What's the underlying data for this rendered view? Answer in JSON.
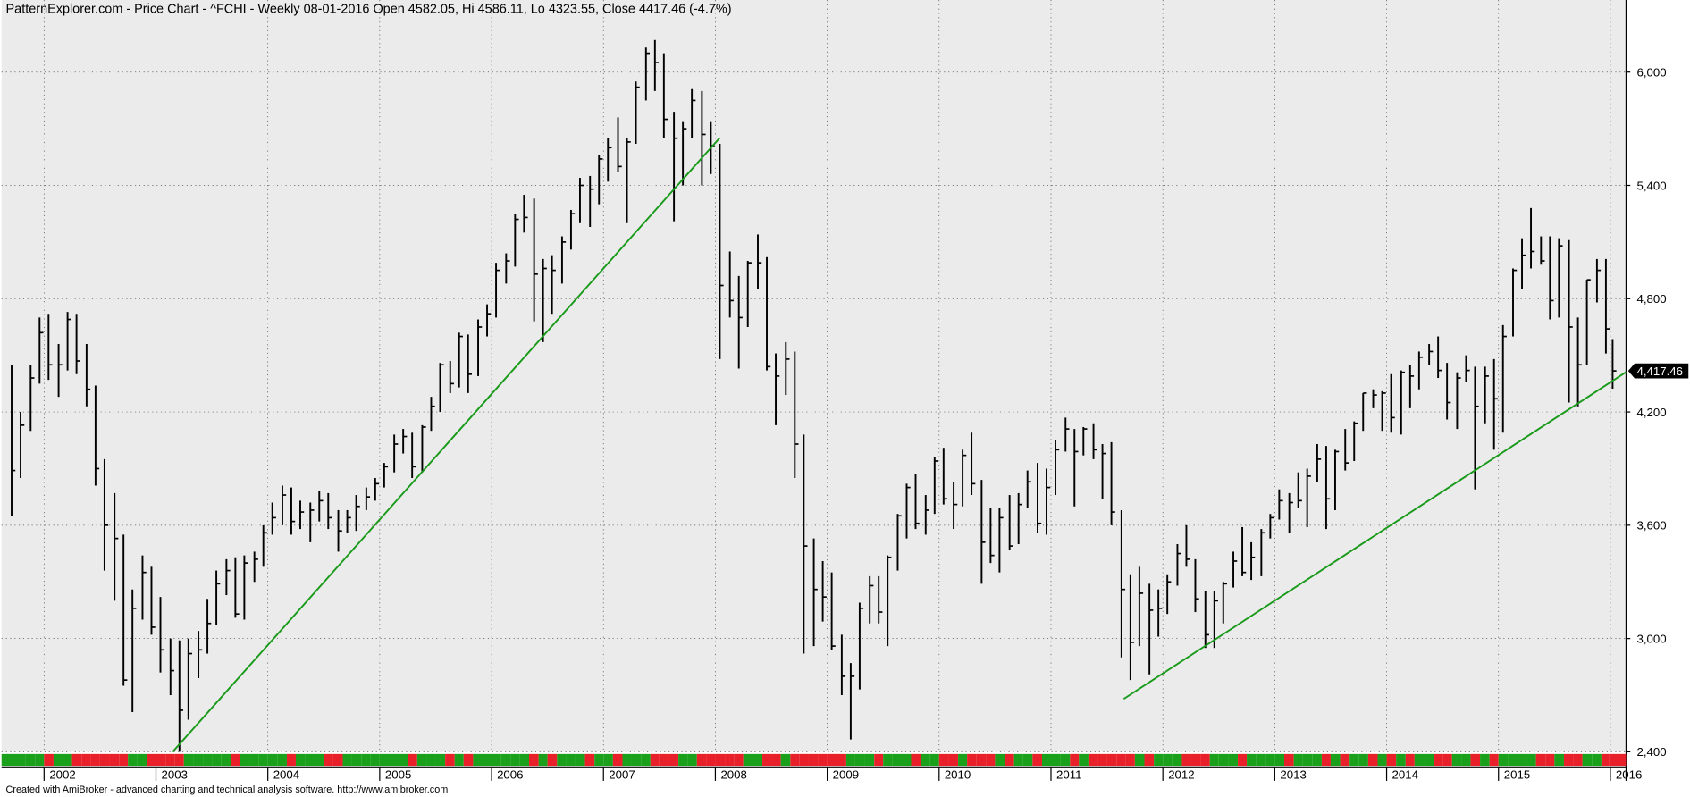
{
  "chart_data": {
    "type": "ohlc",
    "title": "PatternExplorer.com - Price Chart - ^FCHI - Weekly 08-01-2016 Open 4582.05, Hi 4586.11, Lo 4323.55, Close 4417.46 (-4.7%)",
    "footer": "Created with AmiBroker - advanced charting and technical analysis software. http://www.amibroker.com",
    "color": "#000000",
    "up_color": "#1aa01a",
    "down_color": "#e8202a",
    "x": [
      2001.71,
      2001.79,
      2001.88,
      2001.96,
      2002.04,
      2002.13,
      2002.21,
      2002.29,
      2002.38,
      2002.46,
      2002.54,
      2002.63,
      2002.71,
      2002.79,
      2002.88,
      2002.96,
      2003.04,
      2003.13,
      2003.21,
      2003.29,
      2003.38,
      2003.46,
      2003.54,
      2003.63,
      2003.71,
      2003.79,
      2003.88,
      2003.96,
      2004.04,
      2004.13,
      2004.21,
      2004.29,
      2004.38,
      2004.46,
      2004.54,
      2004.63,
      2004.71,
      2004.79,
      2004.88,
      2004.96,
      2005.04,
      2005.13,
      2005.21,
      2005.29,
      2005.38,
      2005.46,
      2005.54,
      2005.63,
      2005.71,
      2005.79,
      2005.88,
      2005.96,
      2006.04,
      2006.13,
      2006.21,
      2006.29,
      2006.38,
      2006.46,
      2006.54,
      2006.63,
      2006.71,
      2006.79,
      2006.88,
      2006.96,
      2007.04,
      2007.13,
      2007.21,
      2007.29,
      2007.38,
      2007.46,
      2007.54,
      2007.63,
      2007.71,
      2007.79,
      2007.88,
      2007.96,
      2008.04,
      2008.13,
      2008.21,
      2008.29,
      2008.38,
      2008.46,
      2008.54,
      2008.63,
      2008.71,
      2008.79,
      2008.88,
      2008.96,
      2009.04,
      2009.13,
      2009.21,
      2009.29,
      2009.38,
      2009.46,
      2009.54,
      2009.63,
      2009.71,
      2009.79,
      2009.88,
      2009.96,
      2010.04,
      2010.13,
      2010.21,
      2010.29,
      2010.38,
      2010.46,
      2010.54,
      2010.63,
      2010.71,
      2010.79,
      2010.88,
      2010.96,
      2011.04,
      2011.13,
      2011.21,
      2011.29,
      2011.38,
      2011.46,
      2011.54,
      2011.63,
      2011.71,
      2011.79,
      2011.88,
      2011.96,
      2012.04,
      2012.13,
      2012.21,
      2012.29,
      2012.38,
      2012.46,
      2012.54,
      2012.63,
      2012.71,
      2012.79,
      2012.88,
      2012.96,
      2013.04,
      2013.13,
      2013.21,
      2013.29,
      2013.38,
      2013.46,
      2013.54,
      2013.63,
      2013.71,
      2013.79,
      2013.88,
      2013.96,
      2014.04,
      2014.13,
      2014.21,
      2014.29,
      2014.38,
      2014.46,
      2014.54,
      2014.63,
      2014.71,
      2014.79,
      2014.88,
      2014.96,
      2015.04,
      2015.13,
      2015.21,
      2015.29,
      2015.38,
      2015.46,
      2015.54,
      2015.63,
      2015.71,
      2015.79,
      2015.88,
      2015.96,
      2016.02
    ],
    "high": [
      4450,
      4200,
      4450,
      4700,
      4720,
      4560,
      4730,
      4720,
      4560,
      4340,
      3950,
      3770,
      3550,
      3260,
      3440,
      3380,
      3220,
      3000,
      2990,
      3000,
      3040,
      3210,
      3360,
      3420,
      3430,
      3440,
      3460,
      3600,
      3720,
      3810,
      3800,
      3730,
      3720,
      3780,
      3770,
      3680,
      3680,
      3760,
      3800,
      3850,
      3930,
      4080,
      4110,
      4090,
      4130,
      4280,
      4460,
      4470,
      4620,
      4610,
      4690,
      4770,
      4990,
      5040,
      5250,
      5350,
      5330,
      5010,
      5030,
      5130,
      5270,
      5440,
      5450,
      5560,
      5650,
      5760,
      5650,
      5950,
      6130,
      6170,
      6100,
      5790,
      5740,
      5910,
      5900,
      5740,
      5620,
      5050,
      4920,
      5000,
      5140,
      5020,
      4510,
      4570,
      4520,
      4080,
      3530,
      3410,
      3350,
      3020,
      2870,
      3190,
      3330,
      3330,
      3440,
      3660,
      3820,
      3870,
      3760,
      3960,
      4010,
      3830,
      4000,
      4090,
      3840,
      3690,
      3690,
      3760,
      3770,
      3890,
      3930,
      3900,
      4050,
      4170,
      4110,
      4120,
      4140,
      4030,
      4040,
      3680,
      3340,
      3380,
      3290,
      3260,
      3340,
      3500,
      3600,
      3420,
      3250,
      3250,
      3300,
      3460,
      3590,
      3510,
      3580,
      3660,
      3790,
      3770,
      3880,
      3900,
      4030,
      4020,
      4000,
      4110,
      4150,
      4300,
      4320,
      4310,
      4400,
      4420,
      4450,
      4520,
      4560,
      4600,
      4460,
      4410,
      4500,
      4440,
      4440,
      4480,
      4660,
      4960,
      5120,
      5280,
      5130,
      5130,
      5120,
      5110,
      4700,
      4900,
      5010,
      5010,
      4586.11
    ],
    "low": [
      3650,
      3850,
      4100,
      4350,
      4370,
      4280,
      4420,
      4400,
      4230,
      3810,
      3360,
      3200,
      2750,
      2610,
      3100,
      3020,
      2820,
      2700,
      2400,
      2570,
      2790,
      2920,
      3070,
      3230,
      3110,
      3100,
      3300,
      3380,
      3550,
      3600,
      3550,
      3580,
      3510,
      3620,
      3580,
      3460,
      3560,
      3570,
      3680,
      3730,
      3800,
      3880,
      3980,
      3850,
      3880,
      4100,
      4200,
      4300,
      4330,
      4300,
      4390,
      4600,
      4700,
      4880,
      4970,
      5150,
      4680,
      4570,
      4720,
      4880,
      5060,
      5200,
      5180,
      5300,
      5420,
      5470,
      5200,
      5620,
      5850,
      5900,
      5650,
      5210,
      5400,
      5650,
      5400,
      5460,
      4480,
      4700,
      4430,
      4650,
      4850,
      4420,
      4130,
      4290,
      3850,
      2920,
      2960,
      3090,
      2940,
      2700,
      2465,
      2730,
      3080,
      3080,
      2960,
      3360,
      3530,
      3580,
      3550,
      3660,
      3710,
      3580,
      3700,
      3760,
      3290,
      3400,
      3350,
      3470,
      3500,
      3690,
      3560,
      3550,
      3760,
      3990,
      3700,
      3970,
      3950,
      3740,
      3600,
      2900,
      2780,
      2960,
      2810,
      3010,
      3130,
      3280,
      3380,
      3140,
      2950,
      2950,
      3080,
      3270,
      3330,
      3310,
      3330,
      3530,
      3630,
      3560,
      3690,
      3590,
      3830,
      3580,
      3680,
      3890,
      3940,
      4100,
      4220,
      4100,
      4090,
      4080,
      4220,
      4320,
      4450,
      4380,
      4160,
      4110,
      4360,
      3790,
      4140,
      4000,
      4090,
      4600,
      4850,
      4960,
      4980,
      4690,
      4700,
      4250,
      4230,
      4450,
      4780,
      4510,
      4323.55
    ],
    "close": [
      3890,
      4130,
      4380,
      4620,
      4450,
      4450,
      4690,
      4470,
      4320,
      3900,
      3600,
      3530,
      2780,
      3160,
      3350,
      3060,
      2940,
      2830,
      2620,
      2920,
      2940,
      3080,
      3290,
      3360,
      3130,
      3400,
      3420,
      3560,
      3640,
      3760,
      3620,
      3670,
      3680,
      3730,
      3640,
      3570,
      3640,
      3700,
      3750,
      3820,
      3910,
      4030,
      4070,
      3910,
      4120,
      4230,
      4450,
      4350,
      4600,
      4400,
      4650,
      4720,
      4950,
      5000,
      5220,
      5230,
      4930,
      4960,
      4950,
      5100,
      5250,
      5400,
      5380,
      5540,
      5600,
      5500,
      5630,
      5920,
      6100,
      6050,
      5750,
      5650,
      5700,
      5850,
      5670,
      5610,
      4870,
      4790,
      4700,
      4990,
      4990,
      4440,
      4390,
      4480,
      4030,
      3490,
      3260,
      3220,
      2960,
      2800,
      2800,
      3160,
      3280,
      3140,
      3430,
      3650,
      3800,
      3610,
      3680,
      3940,
      3740,
      3710,
      3970,
      3820,
      3510,
      3440,
      3640,
      3490,
      3710,
      3830,
      3610,
      3800,
      4000,
      4110,
      3990,
      4110,
      4000,
      3980,
      3670,
      3260,
      2980,
      3240,
      3150,
      3160,
      3300,
      3450,
      3420,
      3210,
      3020,
      3200,
      3290,
      3410,
      3350,
      3430,
      3560,
      3640,
      3730,
      3720,
      3730,
      3860,
      3950,
      3740,
      3990,
      3930,
      4140,
      4300,
      4290,
      4300,
      4170,
      4410,
      4390,
      4490,
      4520,
      4420,
      4250,
      4380,
      4420,
      4230,
      4390,
      4270,
      4600,
      4950,
      5030,
      5050,
      5000,
      4790,
      5080,
      4650,
      4450,
      4900,
      4950,
      4640,
      4417.46
    ],
    "close_label": "4,417.46",
    "trendlines": [
      {
        "x": [
          2003.15,
          2008.04
        ],
        "y": [
          2400,
          5652
        ],
        "color": "#1a9a1a"
      },
      {
        "x": [
          2011.65,
          2016.14
        ],
        "y": [
          2680,
          4411
        ],
        "color": "#1a9a1a"
      }
    ],
    "xlim": [
      2001.62,
      2016.14
    ],
    "xticks": [
      2002,
      2003,
      2004,
      2005,
      2006,
      2007,
      2008,
      2009,
      2010,
      2011,
      2012,
      2013,
      2014,
      2015,
      2016
    ],
    "ylim": [
      2360,
      6382
    ],
    "yticks": [
      {
        "value": 2400,
        "label": "2,400"
      },
      {
        "value": 3000,
        "label": "3,000"
      },
      {
        "value": 3600,
        "label": "3,600"
      },
      {
        "value": 4200,
        "label": "4,200"
      },
      {
        "value": 4800,
        "label": "4,800"
      },
      {
        "value": 5400,
        "label": "5,400"
      },
      {
        "value": 6000,
        "label": "6,000"
      }
    ],
    "grid": true
  }
}
